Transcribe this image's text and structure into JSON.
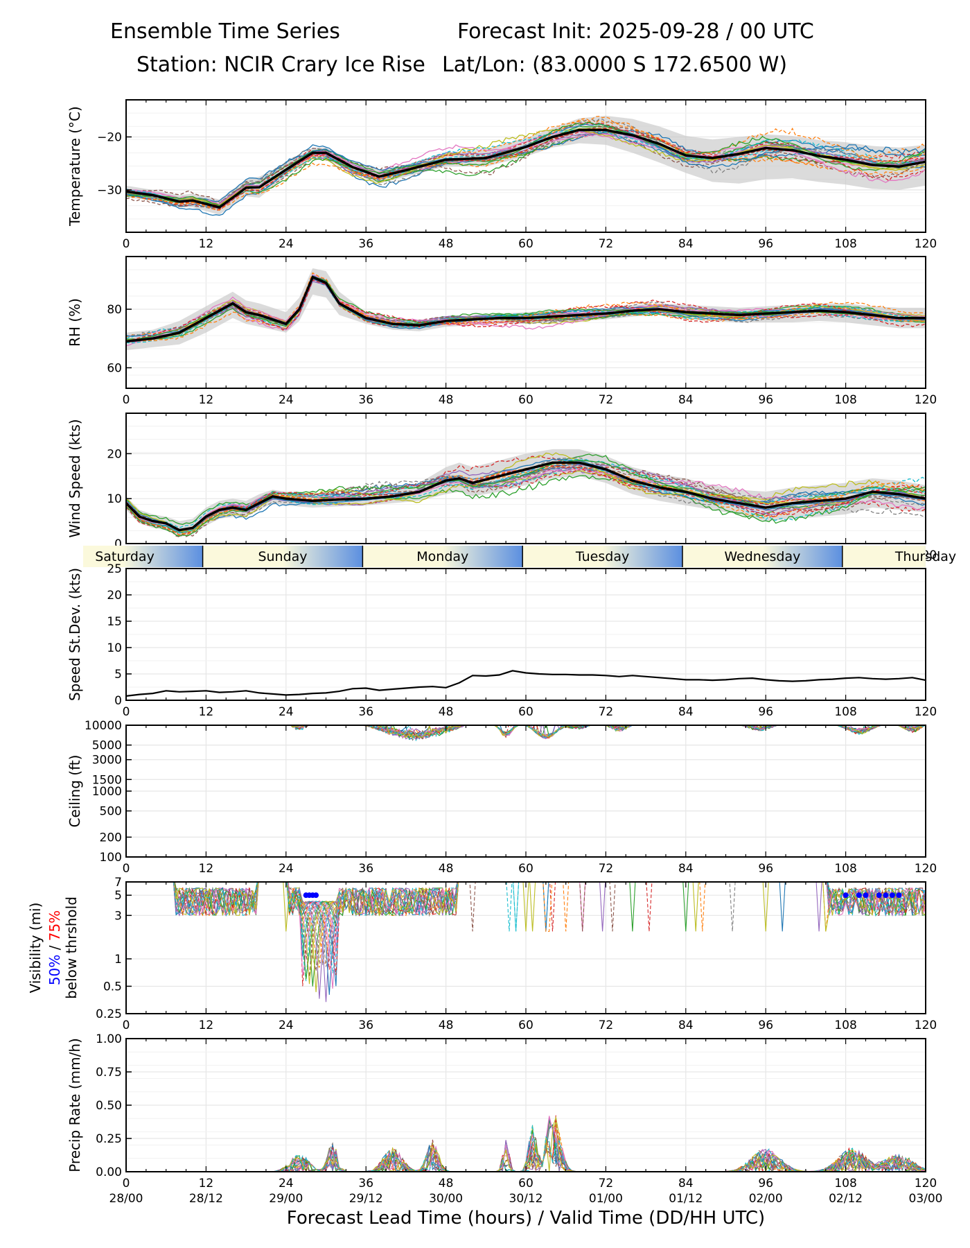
{
  "header": {
    "title_left": "Ensemble Time Series",
    "title_right": "Forecast Init: 2025-09-28 / 00 UTC",
    "station": "Station: NCIR Crary Ice Rise",
    "latlon": "Lat/Lon: (83.0000 S 172.6500 W)"
  },
  "colors": {
    "mean": "#000000",
    "spread": "#c8c8c8",
    "grid": "#e6e6e6",
    "members": [
      "#1f77b4",
      "#ff7f0e",
      "#2ca02c",
      "#d62728",
      "#9467bd",
      "#8c564b",
      "#e377c2",
      "#7f7f7f",
      "#bcbd22",
      "#17becf"
    ],
    "day_band": [
      "#fbf9dc",
      "#5b8fe0"
    ],
    "vis50": "#0000ff",
    "vis75": "#ff0000"
  },
  "day_labels": [
    "Saturday",
    "Sunday",
    "Monday",
    "Tuesday",
    "Wednesday",
    "Thursday"
  ],
  "x_ticks": [
    "0",
    "12",
    "24",
    "36",
    "48",
    "60",
    "72",
    "84",
    "96",
    "108",
    "120"
  ],
  "valid_ticks": [
    "28/00",
    "28/12",
    "29/00",
    "29/12",
    "30/00",
    "30/12",
    "01/00",
    "01/12",
    "02/00",
    "02/12",
    "03/00"
  ],
  "xlabel": "Forecast Lead Time (hours) / Valid Time (DD/HH UTC)",
  "vis_label": {
    "line1": "Visibility (mi)",
    "p50": "50%",
    "slash": " / ",
    "p75": "75%",
    "line3": "below thrshold"
  },
  "chart_data": [
    {
      "type": "line",
      "name": "temperature",
      "ylabel": "Temperature (°C)",
      "xlim": [
        0,
        120
      ],
      "ylim": [
        -38,
        -13
      ],
      "yticks": [
        "−20",
        "−30"
      ],
      "ytick_values": [
        -20,
        -30
      ],
      "mean": {
        "x": [
          0,
          4,
          8,
          10,
          14,
          18,
          20,
          24,
          28,
          30,
          34,
          38,
          42,
          48,
          54,
          60,
          64,
          68,
          72,
          76,
          80,
          84,
          88,
          92,
          96,
          100,
          104,
          108,
          112,
          116,
          120
        ],
        "y": [
          -30.3,
          -31,
          -32.2,
          -32,
          -33.3,
          -29.6,
          -29.5,
          -26.2,
          -23,
          -23,
          -25.7,
          -27.5,
          -26.3,
          -24.3,
          -24,
          -21.9,
          -20,
          -18.7,
          -18.7,
          -19.7,
          -21.3,
          -23.5,
          -24,
          -23.2,
          -22.1,
          -22.5,
          -23.6,
          -24.3,
          -25.3,
          -25.6,
          -24.7
        ]
      },
      "spread_hi": [
        -29.2,
        -30,
        -31,
        -30.7,
        -31.8,
        -28,
        -27.5,
        -25,
        -22,
        -22,
        -24.6,
        -26.2,
        -25.2,
        -23,
        -22.3,
        -20.2,
        -18.3,
        -16.5,
        -16,
        -16.6,
        -18,
        -19.8,
        -20.5,
        -20,
        -19.5,
        -19.8,
        -20.6,
        -21,
        -21.7,
        -22,
        -21.5
      ],
      "spread_lo": [
        -31.4,
        -32,
        -33.3,
        -33.3,
        -34.7,
        -31.2,
        -31.5,
        -27.4,
        -24,
        -24.2,
        -26.8,
        -28.8,
        -27.5,
        -25.6,
        -25.6,
        -23.7,
        -22,
        -21.2,
        -21.5,
        -23,
        -24.8,
        -26.8,
        -28.5,
        -28.8,
        -28,
        -27.8,
        -28.5,
        -29,
        -29.8,
        -30,
        -29.2
      ]
    },
    {
      "type": "line",
      "name": "relative_humidity",
      "ylabel": "RH (%)",
      "xlim": [
        0,
        120
      ],
      "ylim": [
        53,
        98
      ],
      "yticks": [
        "80",
        "60"
      ],
      "ytick_values": [
        80,
        60
      ],
      "mean": {
        "x": [
          0,
          4,
          8,
          12,
          16,
          18,
          20,
          24,
          26,
          28,
          30,
          32,
          36,
          40,
          44,
          48,
          52,
          56,
          60,
          64,
          68,
          72,
          76,
          80,
          84,
          88,
          92,
          96,
          100,
          104,
          108,
          112,
          116,
          120
        ],
        "y": [
          69,
          70,
          72,
          77,
          82,
          79,
          78,
          75,
          80,
          91,
          89,
          82,
          77,
          75,
          74.5,
          76,
          76.5,
          77,
          77,
          77.5,
          78,
          78.5,
          79.5,
          80,
          79,
          78.5,
          78,
          78.5,
          79,
          79.5,
          79,
          78,
          77,
          77
        ]
      },
      "spread_hi": [
        72,
        73,
        76,
        81,
        86,
        83,
        82,
        79,
        84,
        94,
        93,
        86,
        79,
        76.5,
        76,
        77.5,
        78,
        78.5,
        79,
        79.5,
        80,
        80.5,
        81.5,
        82,
        81.5,
        81,
        80.5,
        81,
        81.5,
        82,
        82,
        81,
        80.5,
        80.5
      ],
      "spread_lo": [
        66,
        67,
        68,
        72,
        77,
        75,
        74,
        72,
        76,
        85,
        84,
        78,
        75,
        73,
        72.5,
        74,
        74.5,
        75,
        75,
        75.5,
        76,
        76.5,
        77.5,
        78,
        76.5,
        76,
        75.5,
        75.5,
        75.5,
        76,
        75.5,
        74.5,
        73.5,
        73.5
      ]
    },
    {
      "type": "line",
      "name": "wind_speed",
      "ylabel": "Wind Speed (kts)",
      "xlim": [
        0,
        120
      ],
      "ylim": [
        0,
        29
      ],
      "yticks": [
        "20",
        "10",
        "0"
      ],
      "ytick_values": [
        20,
        10,
        0
      ],
      "mean": {
        "x": [
          0,
          2,
          4,
          6,
          8,
          10,
          12,
          14,
          16,
          18,
          20,
          22,
          24,
          28,
          32,
          36,
          40,
          44,
          48,
          50,
          52,
          56,
          60,
          64,
          68,
          72,
          76,
          80,
          84,
          88,
          92,
          96,
          100,
          104,
          108,
          112,
          116,
          120
        ],
        "y": [
          9,
          6,
          5,
          4.5,
          3,
          3.5,
          6,
          7.5,
          8,
          7.5,
          9,
          10.5,
          10,
          9.5,
          9.8,
          10,
          10.5,
          11.5,
          14,
          14.5,
          13.5,
          15,
          16.5,
          18,
          18,
          16.5,
          14,
          12.5,
          11.5,
          10,
          9,
          8,
          9,
          9.5,
          10,
          11.5,
          11,
          10
        ]
      },
      "spread_hi": [
        10.5,
        7.5,
        6.5,
        6,
        5,
        5.5,
        8,
        9.5,
        10,
        9.5,
        11,
        12,
        11.5,
        11,
        11.2,
        11.5,
        12,
        13.5,
        17,
        18,
        17,
        18.5,
        20,
        21,
        21,
        19.5,
        17,
        15.5,
        14.5,
        13,
        12,
        11.5,
        12.5,
        13,
        13.5,
        14.5,
        14,
        13
      ],
      "spread_lo": [
        7.5,
        4.5,
        3.5,
        3,
        1.5,
        2,
        4,
        5.5,
        6,
        6,
        7.5,
        9,
        8.5,
        8,
        8.3,
        8.5,
        9,
        9.5,
        11,
        11.5,
        10.5,
        11.5,
        13,
        14.5,
        15,
        13.5,
        11,
        9.5,
        8.5,
        7.5,
        6.5,
        5,
        5.5,
        6,
        6.5,
        8,
        7.5,
        7
      ]
    },
    {
      "type": "line",
      "name": "speed_stdev",
      "ylabel": "Speed St.Dev. (kts)",
      "xlim": [
        0,
        120
      ],
      "ylim": [
        0,
        25
      ],
      "yticks": [
        "25",
        "20",
        "15",
        "10",
        "5",
        "0"
      ],
      "ytick_values": [
        25,
        20,
        15,
        10,
        5,
        0
      ],
      "mean": {
        "x": [
          0,
          2,
          4,
          6,
          8,
          10,
          12,
          14,
          16,
          18,
          20,
          22,
          24,
          26,
          28,
          30,
          32,
          34,
          36,
          38,
          40,
          42,
          44,
          46,
          48,
          50,
          52,
          54,
          56,
          58,
          60,
          62,
          64,
          66,
          68,
          70,
          72,
          74,
          76,
          78,
          80,
          82,
          84,
          86,
          88,
          90,
          92,
          94,
          96,
          98,
          100,
          102,
          104,
          106,
          108,
          110,
          112,
          114,
          116,
          118,
          120
        ],
        "y": [
          0.8,
          1.1,
          1.3,
          1.8,
          1.6,
          1.7,
          1.8,
          1.5,
          1.6,
          1.8,
          1.4,
          1.2,
          1.0,
          1.1,
          1.3,
          1.4,
          1.7,
          2.2,
          2.3,
          1.9,
          2.1,
          2.3,
          2.5,
          2.6,
          2.4,
          3.3,
          4.7,
          4.6,
          4.8,
          5.6,
          5.2,
          5.0,
          4.9,
          4.9,
          4.8,
          4.8,
          4.7,
          4.5,
          4.7,
          4.5,
          4.3,
          4.1,
          3.9,
          3.9,
          3.8,
          3.9,
          4.1,
          4.2,
          3.9,
          3.7,
          3.6,
          3.7,
          3.9,
          4.0,
          4.2,
          4.3,
          4.1,
          4.0,
          4.1,
          4.3,
          3.8
        ]
      }
    },
    {
      "type": "line",
      "name": "ceiling",
      "ylabel": "Ceiling (ft)",
      "xlim": [
        0,
        120
      ],
      "yscale": "log",
      "ylim": [
        100,
        10000
      ],
      "yticks": [
        "10000",
        "5000",
        "3000",
        "1500",
        "1000",
        "500",
        "200",
        "100"
      ],
      "ytick_values": [
        10000,
        5000,
        3000,
        1500,
        1000,
        500,
        200,
        100
      ]
    },
    {
      "type": "line",
      "name": "visibility",
      "xlim": [
        0,
        120
      ],
      "yscale": "log",
      "ylim": [
        0.25,
        7
      ],
      "yticks": [
        "7",
        "5",
        "3",
        "1",
        "0.5",
        "0.25"
      ],
      "ytick_values": [
        7,
        5,
        3,
        1,
        0.5,
        0.25
      ],
      "below_threshold_50pct": {
        "x": [
          27,
          27.5,
          28,
          28.5,
          108,
          110,
          111,
          113,
          114,
          115,
          116
        ],
        "y": 5
      }
    },
    {
      "type": "line",
      "name": "precip_rate",
      "ylabel": "Precip Rate (mm/h)",
      "xlim": [
        0,
        120
      ],
      "ylim": [
        0,
        1
      ],
      "yticks": [
        "1.00",
        "0.75",
        "0.50",
        "0.25",
        "0.00"
      ],
      "ytick_values": [
        1,
        0.75,
        0.5,
        0.25,
        0
      ]
    }
  ]
}
